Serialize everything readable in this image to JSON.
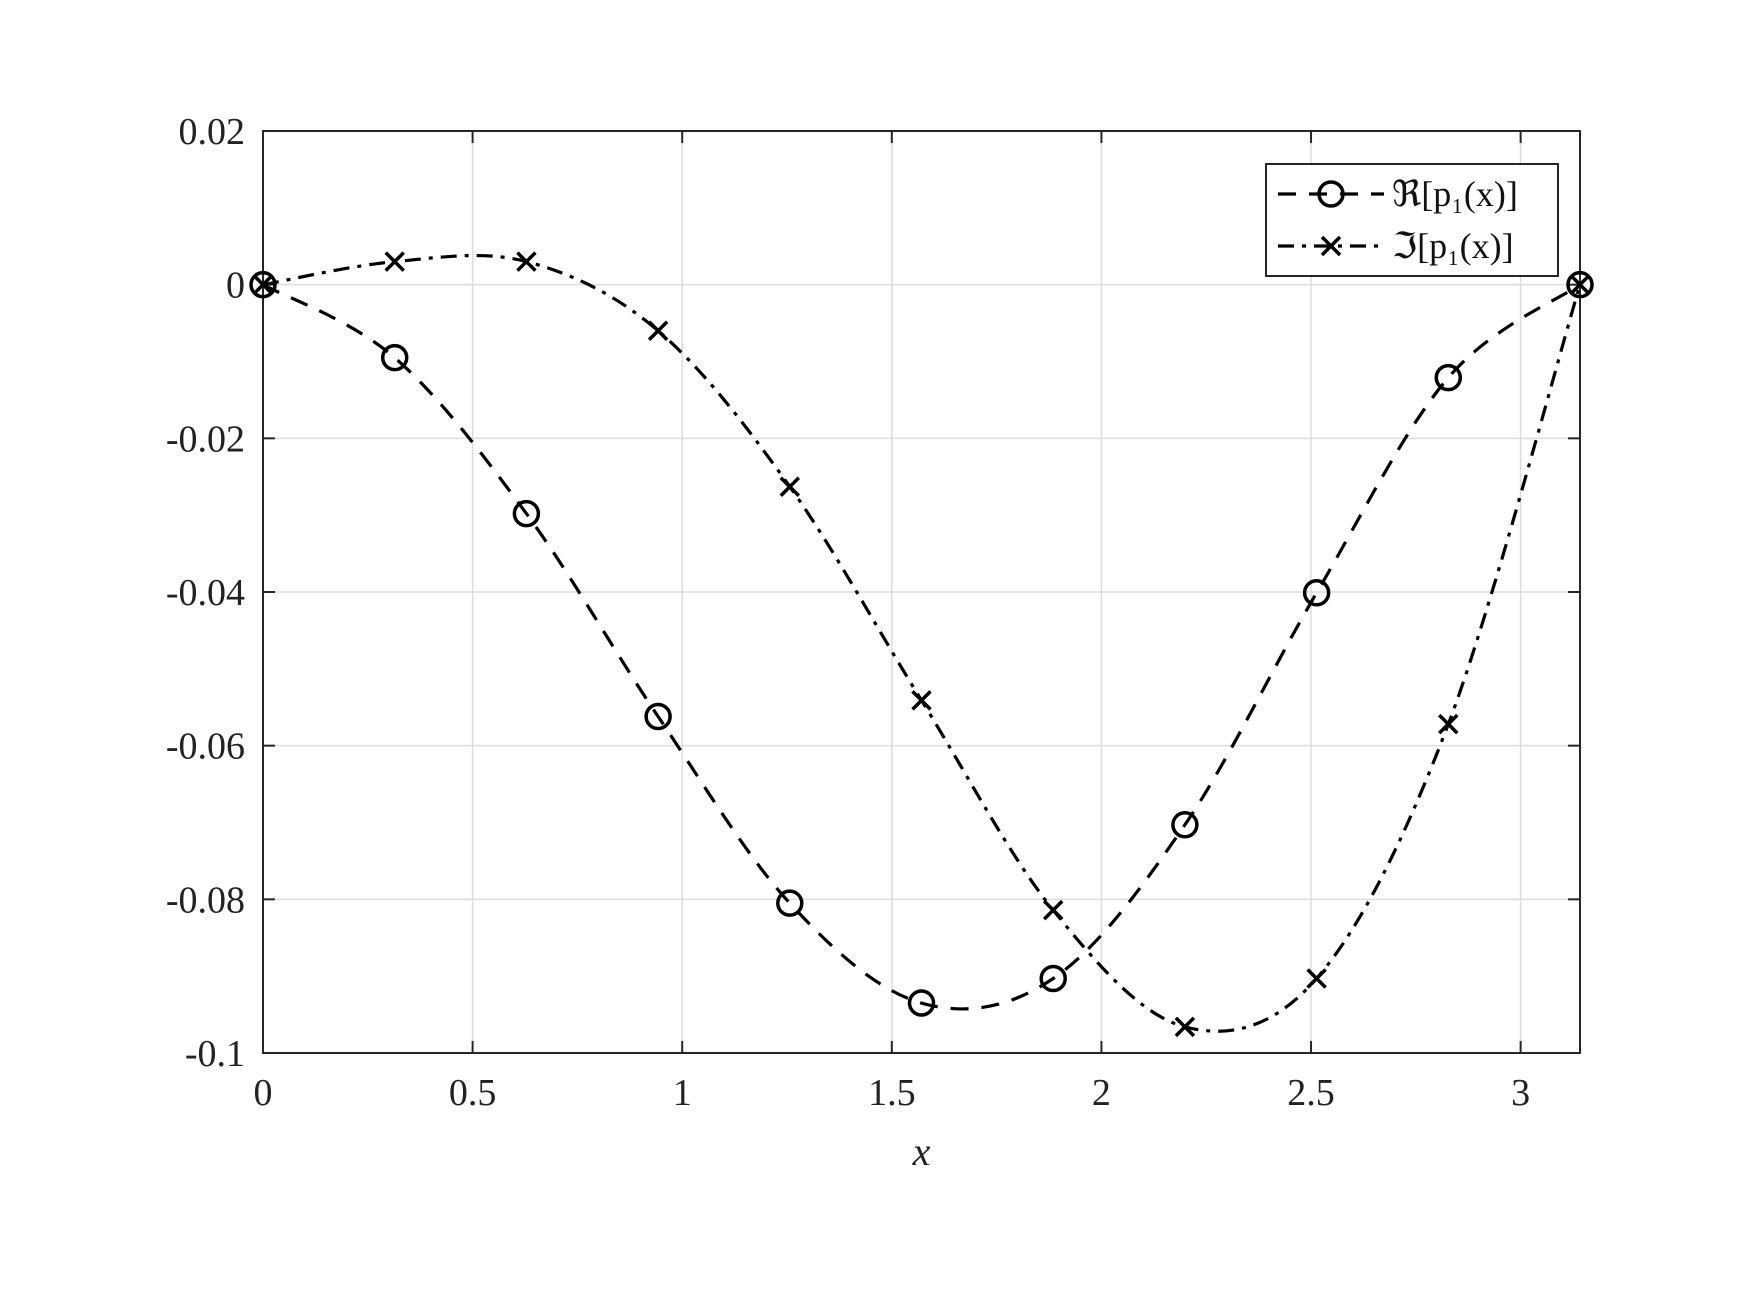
{
  "chart_data": {
    "type": "line",
    "title": "",
    "xlabel": "x",
    "ylabel": "",
    "xlim": [
      0,
      3.1416
    ],
    "ylim": [
      -0.1,
      0.02
    ],
    "xticks": [
      0,
      0.5,
      1,
      1.5,
      2,
      2.5,
      3
    ],
    "xtick_labels": [
      "0",
      "0.5",
      "1",
      "1.5",
      "2",
      "2.5",
      "3"
    ],
    "yticks": [
      0.02,
      0,
      -0.02,
      -0.04,
      -0.06,
      -0.08,
      -0.1
    ],
    "ytick_labels": [
      "0.02",
      "0",
      "-0.02",
      "-0.04",
      "-0.06",
      "-0.08",
      "-0.1"
    ],
    "grid": true,
    "legend_position": "top-right",
    "series": [
      {
        "name": "ℜ[p₁(x)]",
        "line_style": "dashed",
        "marker": "circle",
        "color": "#000000",
        "x": [
          0,
          0.3142,
          0.6283,
          0.9425,
          1.2566,
          1.5708,
          1.885,
          2.1991,
          2.5133,
          2.8274,
          3.1416
        ],
        "y": [
          0,
          -0.0095,
          -0.0298,
          -0.0562,
          -0.0805,
          -0.0935,
          -0.0903,
          -0.0703,
          -0.0401,
          -0.0121,
          0
        ]
      },
      {
        "name": "ℑ[p₁(x)]",
        "line_style": "dashdot",
        "marker": "x",
        "color": "#000000",
        "x": [
          0,
          0.3142,
          0.6283,
          0.9425,
          1.2566,
          1.5708,
          1.885,
          2.1991,
          2.5133,
          2.8274,
          3.1416
        ],
        "y": [
          0,
          0.003,
          0.003,
          -0.006,
          -0.0263,
          -0.0541,
          -0.0814,
          -0.0966,
          -0.0903,
          -0.0572,
          0
        ]
      }
    ]
  }
}
